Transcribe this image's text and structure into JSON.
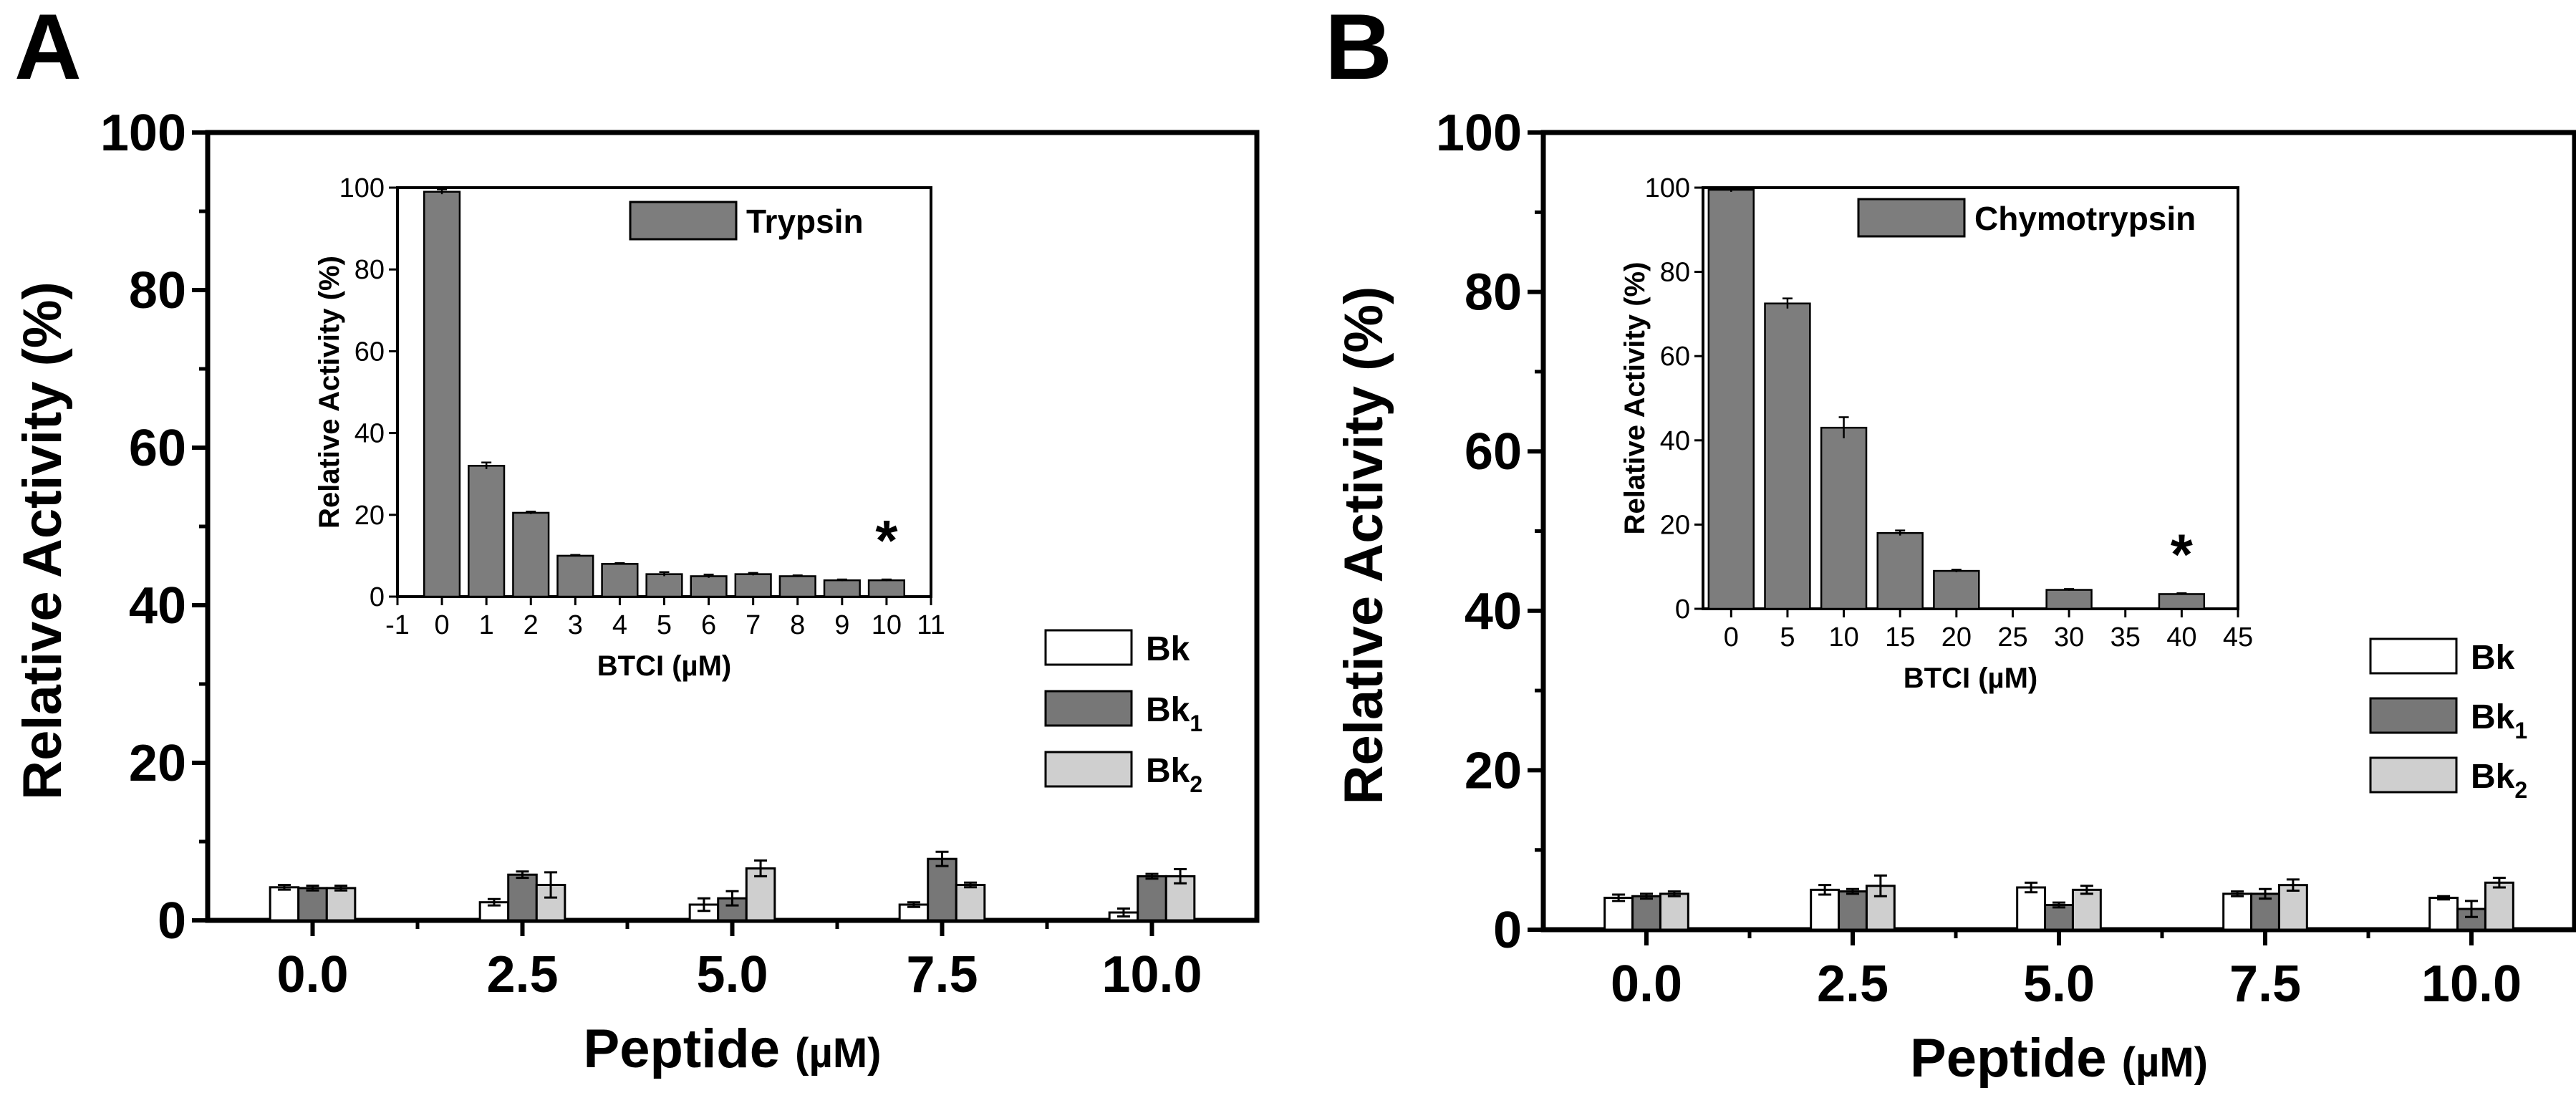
{
  "colors": {
    "Bk": "#ffffff",
    "Bk1": "#777777",
    "Bk2": "#cfcfcf",
    "inset_bar": "#7d7d7d",
    "axis": "#000000"
  },
  "chart_data": [
    {
      "type": "bar",
      "panel": "A",
      "xlabel": "Peptide",
      "xunit": "(µM)",
      "ylabel": "Relative Activity (%)",
      "ylim": [
        0,
        100
      ],
      "yticks": [
        "0",
        "20",
        "40",
        "60",
        "80",
        "100"
      ],
      "categories": [
        "0.0",
        "2.5",
        "5.0",
        "7.5",
        "10.0"
      ],
      "legend_position": "right",
      "series": [
        {
          "name": "Bk",
          "legend_base": "Bk",
          "legend_sub": "",
          "values": [
            4.2,
            2.3,
            2.0,
            2.0,
            1.0
          ],
          "errors": [
            0.3,
            0.4,
            0.8,
            0.3,
            0.5
          ]
        },
        {
          "name": "Bk1",
          "legend_base": "Bk",
          "legend_sub": "1",
          "values": [
            4.1,
            5.8,
            2.8,
            7.8,
            5.6
          ],
          "errors": [
            0.3,
            0.4,
            0.9,
            0.9,
            0.3
          ]
        },
        {
          "name": "Bk2",
          "legend_base": "Bk",
          "legend_sub": "2",
          "values": [
            4.1,
            4.5,
            6.6,
            4.5,
            5.6
          ],
          "errors": [
            0.3,
            1.6,
            1.0,
            0.3,
            0.9
          ]
        }
      ],
      "inset": {
        "type": "bar",
        "xlabel": "BTCI (µM)",
        "ylabel": "Relative Activity (%)",
        "xlim": [
          -1,
          11
        ],
        "xticks": [
          "-1",
          "0",
          "1",
          "2",
          "3",
          "4",
          "5",
          "6",
          "7",
          "8",
          "9",
          "10",
          "11"
        ],
        "ylim": [
          0,
          100
        ],
        "yticks": [
          "0",
          "20",
          "40",
          "60",
          "80",
          "100"
        ],
        "legend": "Trypsin",
        "legend_position": "top-right",
        "x": [
          0,
          1,
          2,
          3,
          4,
          5,
          6,
          7,
          8,
          9,
          10
        ],
        "values": [
          99,
          32,
          20.5,
          10,
          8,
          5.5,
          5,
          5.5,
          5,
          4,
          4
        ],
        "errors": [
          0.6,
          0.8,
          0.3,
          0.2,
          0.2,
          0.5,
          0.4,
          0.3,
          0.2,
          0.2,
          0.2
        ],
        "annotation": {
          "text": "*",
          "x": 10
        }
      }
    },
    {
      "type": "bar",
      "panel": "B",
      "xlabel": "Peptide",
      "xunit": "(µM)",
      "ylabel": "Relative Activity (%)",
      "ylim": [
        0,
        100
      ],
      "yticks": [
        "0",
        "20",
        "40",
        "60",
        "80",
        "100"
      ],
      "categories": [
        "0.0",
        "2.5",
        "5.0",
        "7.5",
        "10.0"
      ],
      "legend_position": "right",
      "series": [
        {
          "name": "Bk",
          "legend_base": "Bk",
          "legend_sub": "",
          "values": [
            4.0,
            5.0,
            5.3,
            4.5,
            4.0
          ],
          "errors": [
            0.4,
            0.6,
            0.6,
            0.3,
            0.2
          ]
        },
        {
          "name": "Bk1",
          "legend_base": "Bk",
          "legend_sub": "1",
          "values": [
            4.2,
            4.8,
            3.1,
            4.5,
            2.6
          ],
          "errors": [
            0.3,
            0.3,
            0.3,
            0.6,
            1.0
          ]
        },
        {
          "name": "Bk2",
          "legend_base": "Bk",
          "legend_sub": "2",
          "values": [
            4.5,
            5.5,
            5.0,
            5.6,
            5.9
          ],
          "errors": [
            0.3,
            1.3,
            0.5,
            0.7,
            0.6
          ]
        }
      ],
      "inset": {
        "type": "bar",
        "xlabel": "BTCI (µM)",
        "ylabel": "Relative Activity (%)",
        "xlim": [
          -2.5,
          45
        ],
        "xticks": [
          "0",
          "5",
          "10",
          "15",
          "20",
          "25",
          "30",
          "35",
          "40",
          "45"
        ],
        "ylim": [
          0,
          100
        ],
        "yticks": [
          "0",
          "20",
          "40",
          "60",
          "80",
          "100"
        ],
        "legend": "Chymotrypsin",
        "legend_position": "top-right",
        "x": [
          0,
          5,
          10,
          15,
          20,
          30,
          40
        ],
        "values": [
          99.5,
          72.5,
          43,
          18,
          9,
          4.5,
          3.5
        ],
        "errors": [
          0.5,
          1.2,
          2.5,
          0.6,
          0.3,
          0.2,
          0.2
        ],
        "annotation": {
          "text": "*",
          "x": 40
        }
      }
    }
  ]
}
